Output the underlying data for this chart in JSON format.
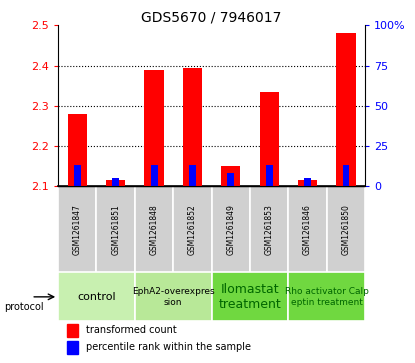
{
  "title": "GDS5670 / 7946017",
  "samples": [
    "GSM1261847",
    "GSM1261851",
    "GSM1261848",
    "GSM1261852",
    "GSM1261849",
    "GSM1261853",
    "GSM1261846",
    "GSM1261850"
  ],
  "red_values": [
    2.28,
    2.115,
    2.39,
    2.395,
    2.15,
    2.335,
    2.115,
    2.48
  ],
  "blue_values": [
    13,
    5,
    13,
    13,
    8,
    13,
    5,
    13
  ],
  "y_min": 2.1,
  "y_max": 2.5,
  "y_ticks": [
    2.1,
    2.2,
    2.3,
    2.4,
    2.5
  ],
  "y2_ticks": [
    0,
    25,
    50,
    75,
    100
  ],
  "proto_groups": [
    {
      "label": "control",
      "cols": [
        0,
        1
      ],
      "color": "#c8f0b0",
      "text_color": "black",
      "fontsize": 8
    },
    {
      "label": "EphA2-overexpres\nsion",
      "cols": [
        2,
        3
      ],
      "color": "#b8e898",
      "text_color": "black",
      "fontsize": 6.5
    },
    {
      "label": "Ilomastat\ntreatment",
      "cols": [
        4,
        5
      ],
      "color": "#70d840",
      "text_color": "#006600",
      "fontsize": 9
    },
    {
      "label": "Rho activator Calp\neptin treatment",
      "cols": [
        6,
        7
      ],
      "color": "#70d840",
      "text_color": "#006600",
      "fontsize": 6.5
    }
  ],
  "legend_red": "transformed count",
  "legend_blue": "percentile rank within the sample",
  "protocol_label": "protocol",
  "bar_width": 0.5,
  "blue_bar_width": 0.18,
  "sample_box_color": "#d0d0d0",
  "grid_color": "black",
  "title_fontsize": 10
}
